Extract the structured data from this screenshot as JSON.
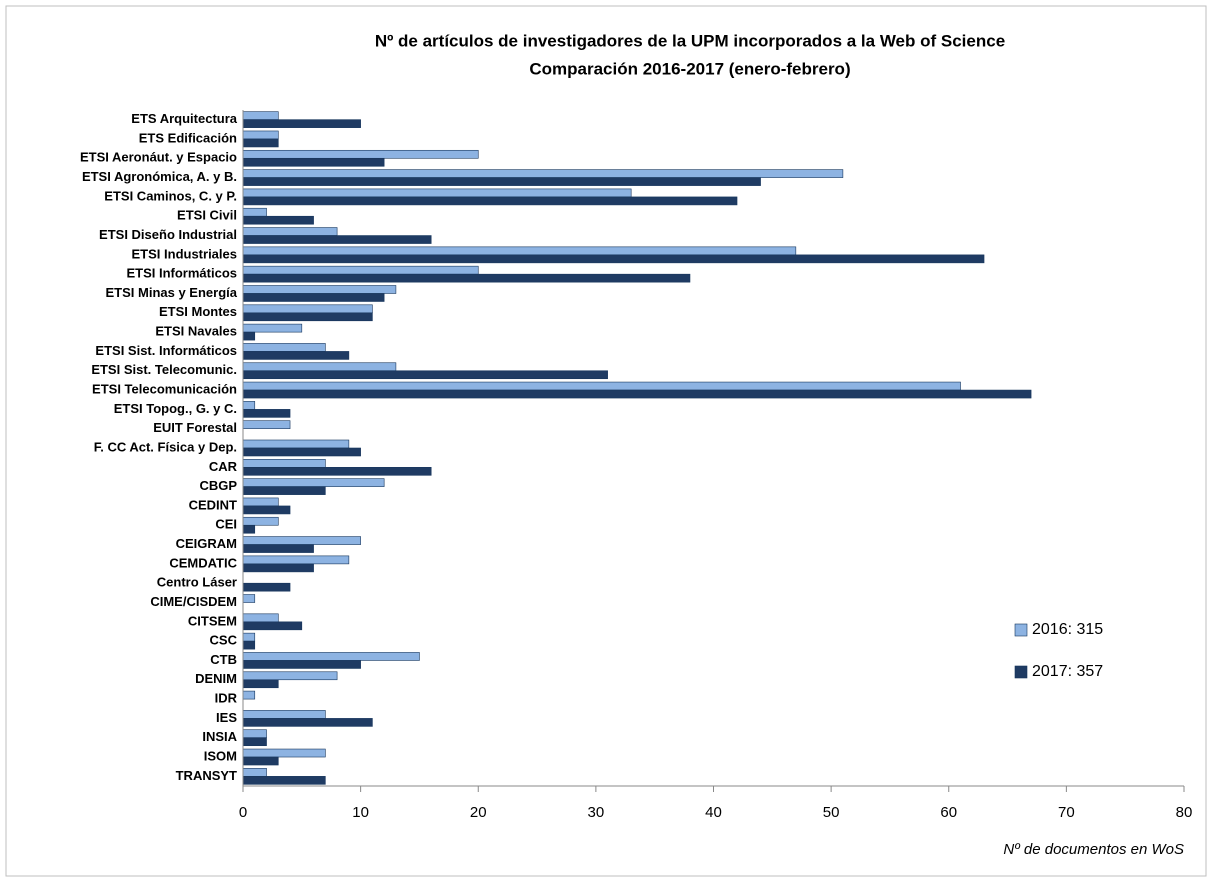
{
  "chart_data": {
    "type": "hbar",
    "title": "Nº de artículos de investigadores de la UPM incorporados a la Web of Science",
    "subtitle": "Comparación 2016-2017 (enero-febrero)",
    "x_label": "Nº de documentos en WoS",
    "categories": [
      "ETS Arquitectura",
      "ETS Edificación",
      "ETSI Aeronáut. y Espacio",
      "ETSI Agronómica, A. y B.",
      "ETSI Caminos, C. y P.",
      "ETSI Civil",
      "ETSI Diseño Industrial",
      "ETSI Industriales",
      "ETSI Informáticos",
      "ETSI Minas y Energía",
      "ETSI Montes",
      "ETSI Navales",
      "ETSI Sist. Informáticos",
      "ETSI Sist. Telecomunic.",
      "ETSI Telecomunicación",
      "ETSI Topog., G. y C.",
      "EUIT Forestal",
      "F. CC Act. Física y Dep.",
      "CAR",
      "CBGP",
      "CEDINT",
      "CEI",
      "CEIGRAM",
      "CEMDATIC",
      "Centro Láser",
      "CIME/CISDEM",
      "CITSEM",
      "CSC",
      "CTB",
      "DENIM",
      "IDR",
      "IES",
      "INSIA",
      "ISOM",
      "TRANSYT"
    ],
    "series": [
      {
        "name": "2016: 315",
        "color": "#8db3e2",
        "values": [
          3,
          3,
          20,
          51,
          33,
          2,
          8,
          47,
          20,
          13,
          11,
          5,
          7,
          13,
          61,
          1,
          4,
          9,
          7,
          12,
          3,
          3,
          10,
          9,
          0,
          1,
          3,
          1,
          15,
          8,
          1,
          7,
          2,
          7,
          2
        ]
      },
      {
        "name": "2017: 357",
        "color": "#1f3b63",
        "values": [
          10,
          3,
          12,
          44,
          42,
          6,
          16,
          63,
          38,
          12,
          11,
          1,
          9,
          31,
          67,
          4,
          0,
          10,
          16,
          7,
          4,
          1,
          6,
          6,
          4,
          0,
          5,
          1,
          10,
          3,
          0,
          11,
          2,
          3,
          7
        ]
      }
    ],
    "xlim": [
      0,
      80
    ],
    "xticks": [
      0,
      10,
      20,
      30,
      40,
      50,
      60,
      70,
      80
    ],
    "legend": "right"
  }
}
